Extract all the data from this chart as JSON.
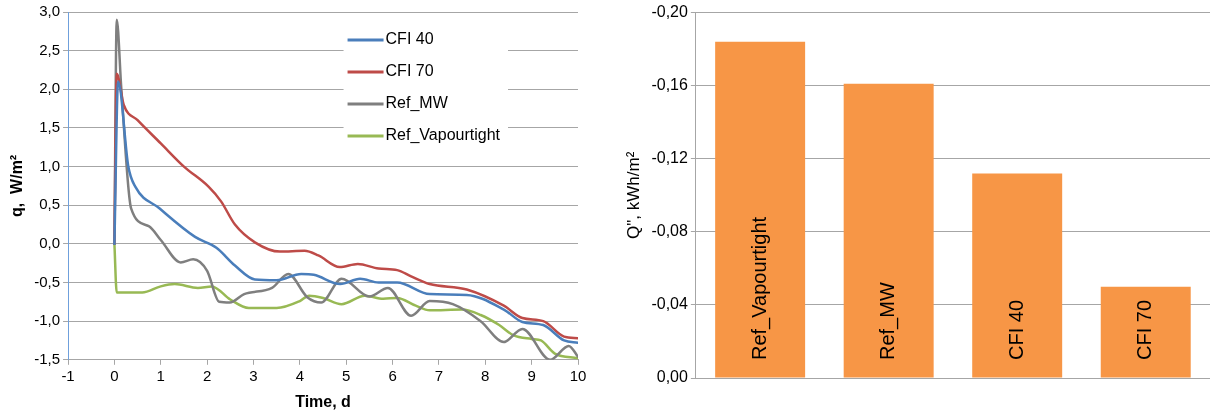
{
  "chart_data": [
    {
      "type": "line",
      "xlabel": "Time, d",
      "ylabel": "q,  W/m²",
      "xlim": [
        -1,
        10
      ],
      "xticks": [
        -1,
        0,
        1,
        2,
        3,
        4,
        5,
        6,
        7,
        8,
        9,
        10
      ],
      "ylim": [
        -1.5,
        3.0
      ],
      "yticks": [
        {
          "value": -1.5,
          "label": "-1,5"
        },
        {
          "value": -1.0,
          "label": "-1,0"
        },
        {
          "value": -0.5,
          "label": "-0,5"
        },
        {
          "value": 0,
          "label": "0,0"
        },
        {
          "value": 0.5,
          "label": "0,5"
        },
        {
          "value": 1.0,
          "label": "1,0"
        },
        {
          "value": 1.5,
          "label": "1,5"
        },
        {
          "value": 2.0,
          "label": "2,0"
        },
        {
          "value": 2.5,
          "label": "2,5"
        },
        {
          "value": 3.0,
          "label": "3,0"
        }
      ],
      "grid": "y",
      "legend": "top right",
      "marker": "none",
      "line_style": "solid",
      "series": [
        {
          "name": "CFI 40",
          "color": "#4a7ebb",
          "x": [
            0,
            0.08,
            0.3,
            0.45,
            0.97,
            1.74,
            2.2,
            2.6,
            3.03,
            3.5,
            4.03,
            4.3,
            4.87,
            5.3,
            5.7,
            6.1,
            6.8,
            7.6,
            8.4,
            8.8,
            9.25,
            9.7,
            10
          ],
          "values": [
            0,
            2.1,
            1.0,
            0.74,
            0.46,
            0.09,
            -0.05,
            -0.28,
            -0.46,
            -0.47,
            -0.39,
            -0.4,
            -0.52,
            -0.45,
            -0.5,
            -0.5,
            -0.65,
            -0.66,
            -0.85,
            -1.01,
            -1.05,
            -1.25,
            -1.28
          ]
        },
        {
          "name": "CFI 70",
          "color": "#be4b48",
          "x": [
            0,
            0.05,
            0.2,
            0.5,
            1.0,
            1.5,
            2.03,
            2.3,
            2.6,
            3.03,
            3.57,
            4.1,
            4.4,
            4.86,
            5.25,
            5.7,
            6.1,
            6.4,
            6.8,
            7.6,
            8.4,
            8.8,
            9.25,
            9.7,
            10
          ],
          "values": [
            0,
            2.2,
            1.8,
            1.6,
            1.3,
            1.0,
            0.74,
            0.55,
            0.25,
            0.02,
            -0.1,
            -0.09,
            -0.15,
            -0.3,
            -0.26,
            -0.32,
            -0.34,
            -0.42,
            -0.52,
            -0.59,
            -0.8,
            -0.96,
            -1.0,
            -1.2,
            -1.22
          ]
        },
        {
          "name": "Ref_MW",
          "color": "#7f7f7f",
          "x": [
            0,
            0.05,
            0.15,
            0.36,
            0.74,
            1.0,
            1.43,
            1.7,
            2.0,
            2.26,
            2.49,
            2.8,
            3.4,
            3.75,
            4.16,
            4.46,
            4.9,
            5.5,
            5.9,
            6.4,
            6.8,
            7.3,
            7.9,
            8.4,
            8.8,
            9.4,
            9.8,
            10
          ],
          "values": [
            0,
            2.9,
            2.0,
            0.46,
            0.23,
            0.05,
            -0.24,
            -0.2,
            -0.35,
            -0.75,
            -0.76,
            -0.65,
            -0.57,
            -0.39,
            -0.69,
            -0.76,
            -0.45,
            -0.68,
            -0.57,
            -0.93,
            -0.74,
            -0.78,
            -1.0,
            -1.27,
            -1.1,
            -1.5,
            -1.32,
            -1.46
          ]
        },
        {
          "name": "Ref_Vapourtight",
          "color": "#98b954",
          "x": [
            0,
            0.05,
            0.6,
            1.0,
            1.3,
            1.8,
            2.1,
            2.5,
            2.9,
            3.5,
            4.0,
            4.2,
            4.5,
            4.9,
            5.4,
            5.8,
            6.1,
            6.5,
            6.8,
            7.5,
            7.9,
            8.3,
            8.6,
            9.0,
            9.2,
            9.5,
            10
          ],
          "values": [
            0,
            -0.63,
            -0.63,
            -0.55,
            -0.52,
            -0.57,
            -0.55,
            -0.72,
            -0.83,
            -0.83,
            -0.74,
            -0.67,
            -0.7,
            -0.78,
            -0.67,
            -0.71,
            -0.7,
            -0.8,
            -0.86,
            -0.85,
            -0.92,
            -1.05,
            -1.18,
            -1.23,
            -1.25,
            -1.42,
            -1.48
          ]
        }
      ]
    },
    {
      "type": "bar",
      "ylabel": "Q\", kWh/m²",
      "categories": [
        "Ref_Vapourtight",
        "Ref_MW",
        "CFI 40",
        "CFI 70"
      ],
      "values": [
        -0.184,
        -0.161,
        -0.112,
        -0.05
      ],
      "color": "#f79646",
      "ylim": [
        0,
        -0.2
      ],
      "yticks": [
        {
          "value": 0,
          "label": "0,00"
        },
        {
          "value": -0.04,
          "label": "-0,04"
        },
        {
          "value": -0.08,
          "label": "-0,08"
        },
        {
          "value": -0.12,
          "label": "-0,12"
        },
        {
          "value": -0.16,
          "label": "-0,16"
        },
        {
          "value": -0.2,
          "label": "-0,20"
        }
      ],
      "grid": "y",
      "legend": false
    }
  ]
}
